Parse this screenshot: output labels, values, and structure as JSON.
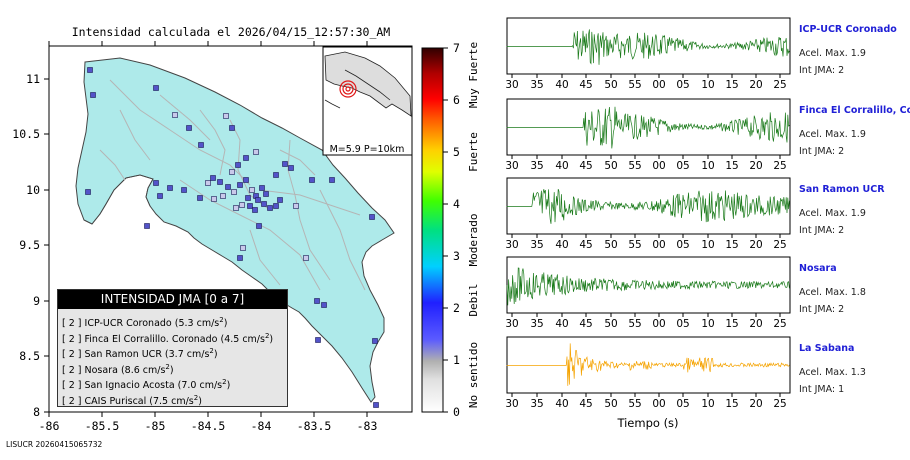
{
  "map": {
    "title": "Intensidad calculada el 2026/04/15_12:57:30_AM",
    "footer_id": "LISUCR 20260415065732",
    "x_ticks": [
      "-86",
      "-85.5",
      "-85",
      "-84.5",
      "-84",
      "-83.5",
      "-83"
    ],
    "y_ticks": [
      "11",
      "10.5",
      "10",
      "9.5",
      "9",
      "8.5",
      "8"
    ],
    "inset_label": "M=5.9 P=10km",
    "land_color": "#aeeaea",
    "station_color": "#5353c9"
  },
  "legend": {
    "title": "INTENSIDAD JMA [0 a 7]",
    "entries": [
      {
        "level": "[ 2 ]",
        "name": "ICP-UCR Coronado",
        "value": "(5.3 cm/s",
        "exp": "2",
        "close": ")"
      },
      {
        "level": "[ 2 ]",
        "name": "Finca El Corralillo. Coronado",
        "value": "(4.5 cm/s",
        "exp": "2",
        "close": ")"
      },
      {
        "level": "[ 2 ]",
        "name": "San Ramon UCR",
        "value": "(3.7 cm/s",
        "exp": "2",
        "close": ")"
      },
      {
        "level": "[ 2 ]",
        "name": "Nosara",
        "value": "(8.6 cm/s",
        "exp": "2",
        "close": ")"
      },
      {
        "level": "[ 2 ]",
        "name": "San Ignacio Acosta",
        "value": "(7.0 cm/s",
        "exp": "2",
        "close": ")"
      },
      {
        "level": "[ 2 ]",
        "name": "CAIS Puriscal",
        "value": "(7.5 cm/s",
        "exp": "2",
        "close": ")"
      }
    ]
  },
  "colorbar": {
    "ticks": [
      "7",
      "6",
      "5",
      "4",
      "3",
      "2",
      "1",
      "0"
    ],
    "labels": [
      "Muy Fuerte",
      "Fuerte",
      "Moderado",
      "Debil",
      "No sentido"
    ]
  },
  "seismograms": {
    "x_ticks": [
      "30",
      "35",
      "40",
      "45",
      "50",
      "55",
      "00",
      "05",
      "10",
      "15",
      "20",
      "25"
    ],
    "xlabel": "Tiempo (s)",
    "panels": [
      {
        "name": "ICP-UCR Coronado",
        "acel": "Acel. Max. 1.9",
        "jma": "Int JMA: 2",
        "color": "#1a7a1a",
        "onset": 0.23,
        "amp": 0.8
      },
      {
        "name": "Finca El Corralillo, Coronado",
        "acel": "Acel. Max. 1.9",
        "jma": "Int JMA: 2",
        "color": "#1a7a1a",
        "onset": 0.27,
        "amp": 0.9
      },
      {
        "name": "San Ramon UCR",
        "acel": "Acel. Max. 1.9",
        "jma": "Int JMA: 2",
        "color": "#1a7a1a",
        "onset": 0.09,
        "amp": 0.85
      },
      {
        "name": "Nosara",
        "acel": "Acel. Max. 1.8",
        "jma": "Int JMA: 2",
        "color": "#1a7a1a",
        "onset": 0.0,
        "amp": 0.7
      },
      {
        "name": "La Sabana",
        "acel": "Acel. Max. 1.3",
        "jma": "Int JMA: 1",
        "color": "#f5a300",
        "onset": 0.21,
        "amp": 0.95
      }
    ]
  }
}
